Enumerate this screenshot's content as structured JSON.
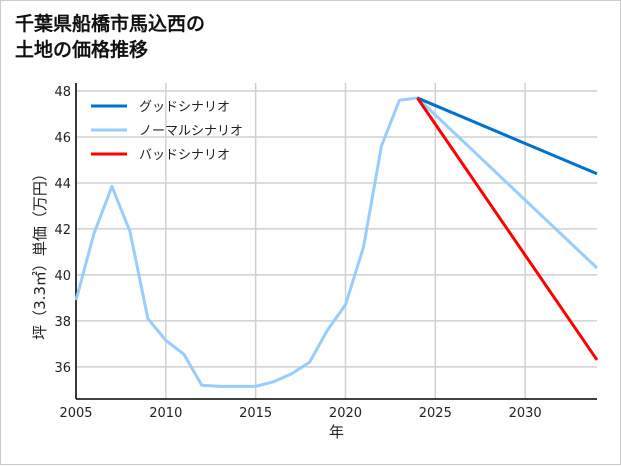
{
  "chart_data": {
    "type": "line",
    "title_lines": [
      "千葉県船橋市馬込西の",
      "土地の価格推移"
    ],
    "xlabel": "年",
    "ylabel": "坪（3.3㎡）単価（万円）",
    "xlim": [
      2005,
      2034
    ],
    "ylim": [
      34.6,
      48.35
    ],
    "xticks": [
      2005,
      2010,
      2015,
      2020,
      2025,
      2030
    ],
    "yticks": [
      36,
      38,
      40,
      42,
      44,
      46,
      48
    ],
    "grid": true,
    "legend_position": "top-left",
    "series": [
      {
        "name": "グッドシナリオ",
        "color": "#0072CE",
        "x": [
          2024,
          2034
        ],
        "y": [
          47.7,
          44.4
        ]
      },
      {
        "name": "ノーマルシナリオ",
        "color": "#99CCFF",
        "x": [
          2005,
          2006,
          2007,
          2008,
          2009,
          2010,
          2011,
          2012,
          2013,
          2014,
          2015,
          2016,
          2017,
          2018,
          2019,
          2020,
          2021,
          2022,
          2023,
          2024,
          2034
        ],
        "y": [
          38.9,
          41.8,
          43.85,
          41.9,
          38.1,
          37.15,
          36.55,
          35.2,
          35.15,
          35.15,
          35.15,
          35.35,
          35.7,
          36.2,
          37.6,
          38.7,
          41.2,
          45.6,
          47.6,
          47.7,
          40.3
        ]
      },
      {
        "name": "バッドシナリオ",
        "color": "#FF0000",
        "x": [
          2024,
          2034
        ],
        "y": [
          47.7,
          36.3
        ]
      }
    ]
  }
}
